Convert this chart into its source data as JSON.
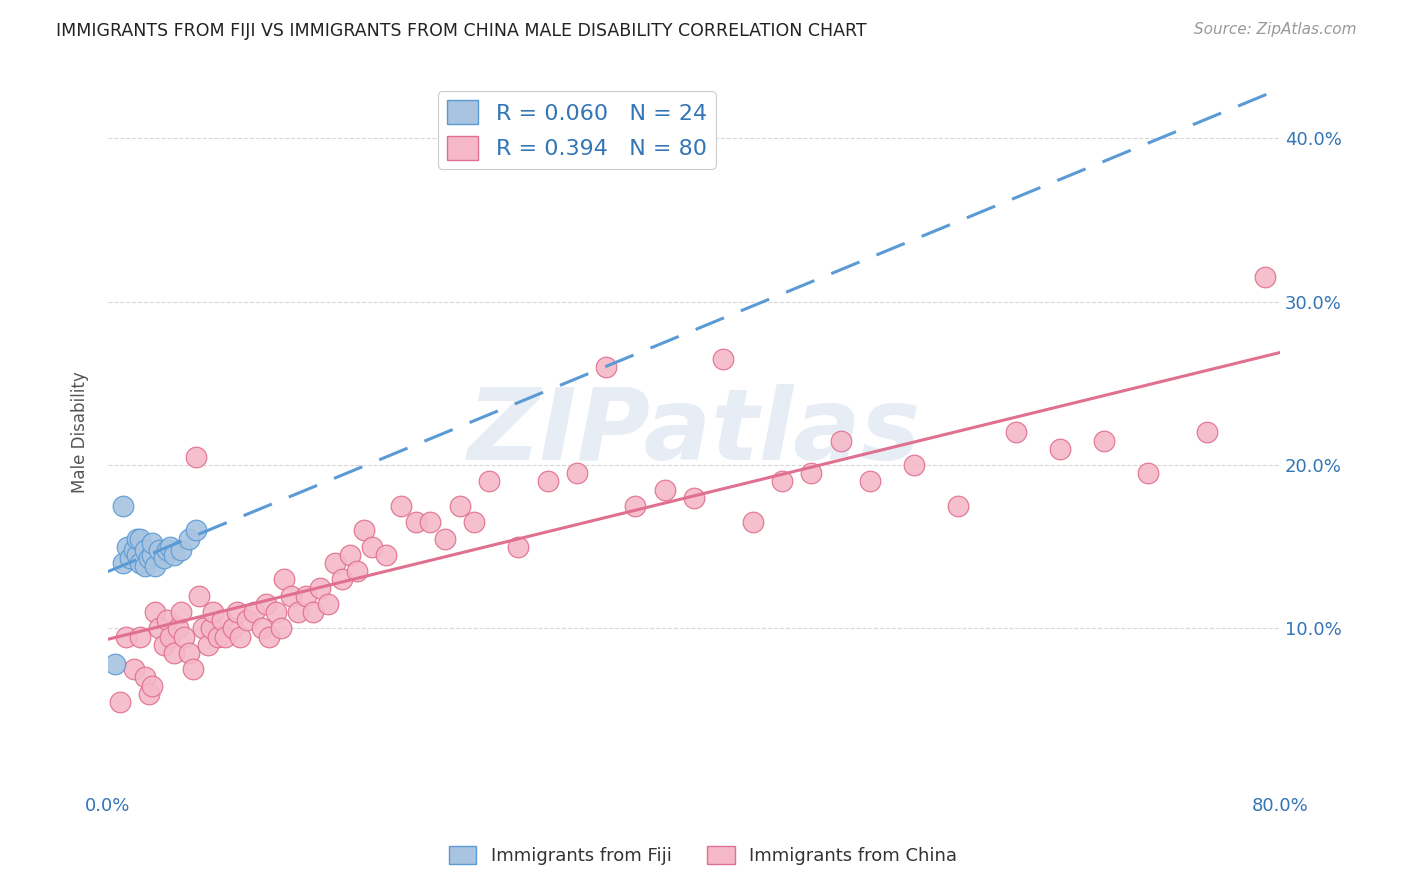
{
  "title": "IMMIGRANTS FROM FIJI VS IMMIGRANTS FROM CHINA MALE DISABILITY CORRELATION CHART",
  "source": "Source: ZipAtlas.com",
  "ylabel": "Male Disability",
  "xlim": [
    0.0,
    0.8
  ],
  "ylim": [
    0.0,
    0.44
  ],
  "fiji_color": "#a8c4e0",
  "fiji_edge_color": "#5b9bd5",
  "china_color": "#f4b8c8",
  "china_edge_color": "#e07090",
  "fiji_R": 0.06,
  "fiji_N": 24,
  "china_R": 0.394,
  "china_N": 80,
  "fiji_x": [
    0.005,
    0.01,
    0.01,
    0.013,
    0.015,
    0.018,
    0.02,
    0.02,
    0.022,
    0.022,
    0.025,
    0.025,
    0.028,
    0.03,
    0.03,
    0.032,
    0.035,
    0.038,
    0.04,
    0.042,
    0.045,
    0.05,
    0.055,
    0.06
  ],
  "fiji_y": [
    0.078,
    0.175,
    0.14,
    0.15,
    0.143,
    0.148,
    0.145,
    0.155,
    0.14,
    0.155,
    0.138,
    0.148,
    0.143,
    0.145,
    0.152,
    0.138,
    0.148,
    0.143,
    0.148,
    0.15,
    0.145,
    0.148,
    0.155,
    0.16
  ],
  "china_x": [
    0.008,
    0.012,
    0.018,
    0.02,
    0.022,
    0.025,
    0.028,
    0.03,
    0.032,
    0.035,
    0.038,
    0.04,
    0.042,
    0.045,
    0.048,
    0.05,
    0.052,
    0.055,
    0.058,
    0.06,
    0.062,
    0.065,
    0.068,
    0.07,
    0.072,
    0.075,
    0.078,
    0.08,
    0.085,
    0.088,
    0.09,
    0.095,
    0.1,
    0.105,
    0.108,
    0.11,
    0.115,
    0.118,
    0.12,
    0.125,
    0.13,
    0.135,
    0.14,
    0.145,
    0.15,
    0.155,
    0.16,
    0.165,
    0.17,
    0.175,
    0.18,
    0.19,
    0.2,
    0.21,
    0.22,
    0.23,
    0.24,
    0.25,
    0.26,
    0.28,
    0.3,
    0.32,
    0.34,
    0.36,
    0.38,
    0.4,
    0.42,
    0.44,
    0.46,
    0.48,
    0.5,
    0.52,
    0.55,
    0.58,
    0.62,
    0.65,
    0.68,
    0.71,
    0.75,
    0.79
  ],
  "china_y": [
    0.055,
    0.095,
    0.075,
    0.15,
    0.095,
    0.07,
    0.06,
    0.065,
    0.11,
    0.1,
    0.09,
    0.105,
    0.095,
    0.085,
    0.1,
    0.11,
    0.095,
    0.085,
    0.075,
    0.205,
    0.12,
    0.1,
    0.09,
    0.1,
    0.11,
    0.095,
    0.105,
    0.095,
    0.1,
    0.11,
    0.095,
    0.105,
    0.11,
    0.1,
    0.115,
    0.095,
    0.11,
    0.1,
    0.13,
    0.12,
    0.11,
    0.12,
    0.11,
    0.125,
    0.115,
    0.14,
    0.13,
    0.145,
    0.135,
    0.16,
    0.15,
    0.145,
    0.175,
    0.165,
    0.165,
    0.155,
    0.175,
    0.165,
    0.19,
    0.15,
    0.19,
    0.195,
    0.26,
    0.175,
    0.185,
    0.18,
    0.265,
    0.165,
    0.19,
    0.195,
    0.215,
    0.19,
    0.2,
    0.175,
    0.22,
    0.21,
    0.215,
    0.195,
    0.22,
    0.315
  ],
  "watermark_text": "ZIPatlas",
  "background_color": "#ffffff",
  "grid_color": "#d8d8d8"
}
